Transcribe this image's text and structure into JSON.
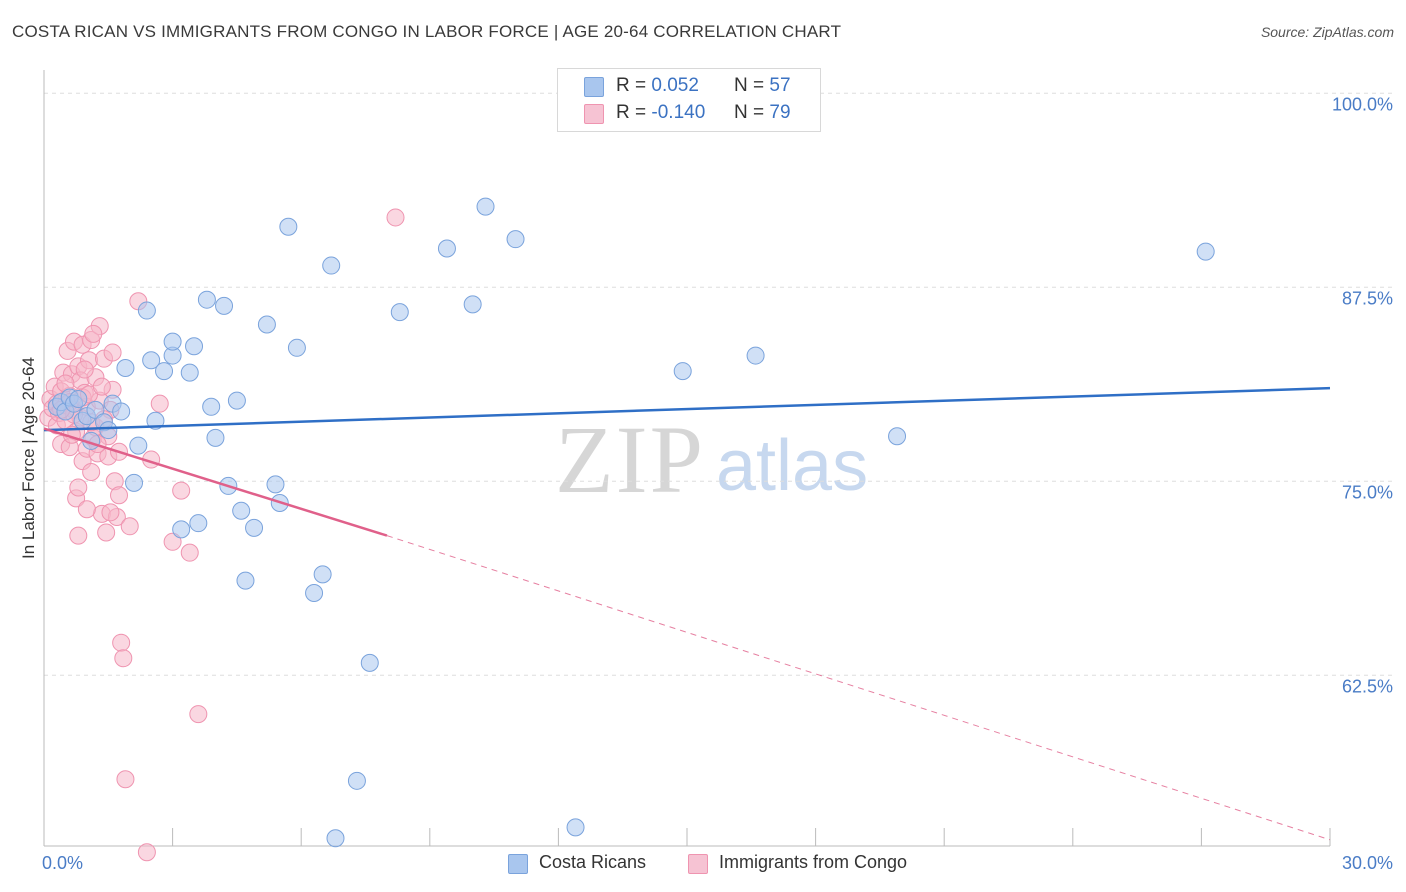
{
  "header": {
    "title": "COSTA RICAN VS IMMIGRANTS FROM CONGO IN LABOR FORCE | AGE 20-64 CORRELATION CHART",
    "source": "Source: ZipAtlas.com"
  },
  "watermark": {
    "zip": "ZIP",
    "atlas": "atlas"
  },
  "colors": {
    "blue_fill": "#a9c6ee",
    "blue_stroke": "#7aa3dc",
    "blue_line": "#2f6fc6",
    "pink_fill": "#f6b6c9",
    "pink_stroke": "#ef94b0",
    "pink_line": "#e0608a",
    "tick_text": "#4a7cc6",
    "grid": "#dddddd"
  },
  "legend": {
    "series": [
      {
        "r_label": "R =",
        "r_value": "0.052",
        "n_label": "N =",
        "n_value": "57"
      },
      {
        "r_label": "R =",
        "r_value": "-0.140",
        "n_label": "N =",
        "n_value": "79"
      }
    ]
  },
  "chart_data": {
    "type": "scatter",
    "title": "COSTA RICAN VS IMMIGRANTS FROM CONGO IN LABOR FORCE | AGE 20-64 CORRELATION CHART",
    "xlabel": "",
    "ylabel": "In Labor Force | Age 20-64",
    "xlim": [
      0,
      30
    ],
    "ylim": [
      51.5,
      101.5
    ],
    "x_tick_labels": [
      "0.0%",
      "30.0%"
    ],
    "y_ticks": [
      62.5,
      75.0,
      87.5,
      100.0
    ],
    "y_tick_labels": [
      "62.5%",
      "75.0%",
      "87.5%",
      "100.0%"
    ],
    "grid": "horizontal dashed",
    "series": [
      {
        "name": "Costa Ricans",
        "R": 0.052,
        "N": 57,
        "trend": {
          "x": [
            0,
            30
          ],
          "y": [
            78.3,
            81.0
          ],
          "style": "solid"
        },
        "points": [
          [
            0.3,
            79.8
          ],
          [
            0.4,
            80.1
          ],
          [
            0.5,
            79.5
          ],
          [
            0.6,
            80.4
          ],
          [
            0.7,
            80.0
          ],
          [
            0.8,
            80.3
          ],
          [
            0.9,
            78.9
          ],
          [
            1.0,
            79.2
          ],
          [
            1.1,
            77.6
          ],
          [
            1.2,
            79.6
          ],
          [
            1.4,
            78.8
          ],
          [
            1.5,
            78.3
          ],
          [
            1.6,
            80.0
          ],
          [
            1.8,
            79.5
          ],
          [
            1.9,
            82.3
          ],
          [
            2.1,
            74.9
          ],
          [
            2.2,
            77.3
          ],
          [
            2.4,
            86.0
          ],
          [
            2.5,
            82.8
          ],
          [
            2.6,
            78.9
          ],
          [
            2.8,
            82.1
          ],
          [
            3.0,
            83.1
          ],
          [
            3.0,
            84.0
          ],
          [
            3.2,
            71.9
          ],
          [
            3.4,
            82.0
          ],
          [
            3.5,
            83.7
          ],
          [
            3.6,
            72.3
          ],
          [
            3.8,
            86.7
          ],
          [
            3.9,
            79.8
          ],
          [
            4.0,
            77.8
          ],
          [
            4.2,
            86.3
          ],
          [
            4.3,
            74.7
          ],
          [
            4.5,
            80.2
          ],
          [
            4.6,
            73.1
          ],
          [
            4.7,
            68.6
          ],
          [
            4.9,
            72.0
          ],
          [
            5.2,
            85.1
          ],
          [
            5.4,
            74.8
          ],
          [
            5.5,
            73.6
          ],
          [
            5.7,
            91.4
          ],
          [
            5.9,
            83.6
          ],
          [
            6.3,
            67.8
          ],
          [
            6.5,
            69.0
          ],
          [
            6.7,
            88.9
          ],
          [
            6.8,
            52.0
          ],
          [
            7.3,
            55.7
          ],
          [
            7.6,
            63.3
          ],
          [
            8.3,
            85.9
          ],
          [
            9.4,
            90.0
          ],
          [
            10.0,
            86.4
          ],
          [
            10.3,
            92.7
          ],
          [
            11.0,
            90.6
          ],
          [
            12.4,
            52.7
          ],
          [
            14.9,
            82.1
          ],
          [
            16.6,
            83.1
          ],
          [
            19.9,
            77.9
          ],
          [
            27.1,
            89.8
          ]
        ]
      },
      {
        "name": "Immigrants from Congo",
        "R": -0.14,
        "N": 79,
        "trend": {
          "x": [
            0,
            8
          ],
          "y": [
            78.4,
            71.5
          ],
          "style": "solid",
          "extension": {
            "x": [
              8,
              30
            ],
            "y": [
              71.5,
              51.9
            ],
            "style": "dashed"
          }
        },
        "points": [
          [
            0.1,
            79.1
          ],
          [
            0.15,
            80.3
          ],
          [
            0.2,
            79.7
          ],
          [
            0.25,
            81.1
          ],
          [
            0.3,
            78.6
          ],
          [
            0.3,
            80.0
          ],
          [
            0.35,
            79.4
          ],
          [
            0.4,
            77.4
          ],
          [
            0.4,
            80.8
          ],
          [
            0.45,
            82.0
          ],
          [
            0.5,
            78.9
          ],
          [
            0.5,
            79.9
          ],
          [
            0.55,
            83.4
          ],
          [
            0.6,
            77.2
          ],
          [
            0.6,
            80.5
          ],
          [
            0.65,
            81.9
          ],
          [
            0.7,
            79.6
          ],
          [
            0.7,
            84.0
          ],
          [
            0.75,
            73.9
          ],
          [
            0.75,
            78.2
          ],
          [
            0.8,
            74.6
          ],
          [
            0.8,
            82.4
          ],
          [
            0.85,
            79.1
          ],
          [
            0.85,
            81.5
          ],
          [
            0.9,
            83.8
          ],
          [
            0.9,
            76.3
          ],
          [
            0.95,
            80.7
          ],
          [
            1.0,
            77.1
          ],
          [
            1.0,
            79.8
          ],
          [
            1.05,
            82.8
          ],
          [
            1.1,
            75.6
          ],
          [
            1.1,
            84.1
          ],
          [
            1.15,
            77.8
          ],
          [
            1.2,
            78.5
          ],
          [
            1.25,
            76.8
          ],
          [
            1.3,
            80.2
          ],
          [
            1.35,
            72.9
          ],
          [
            1.4,
            82.9
          ],
          [
            1.45,
            71.7
          ],
          [
            1.5,
            77.9
          ],
          [
            1.55,
            79.6
          ],
          [
            1.6,
            80.9
          ],
          [
            1.65,
            75.0
          ],
          [
            1.7,
            72.7
          ],
          [
            1.75,
            74.1
          ],
          [
            1.8,
            64.6
          ],
          [
            1.85,
            63.6
          ],
          [
            1.9,
            55.8
          ],
          [
            2.0,
            72.1
          ],
          [
            2.2,
            86.6
          ],
          [
            2.5,
            76.4
          ],
          [
            2.7,
            80.0
          ],
          [
            3.0,
            71.1
          ],
          [
            3.2,
            74.4
          ],
          [
            3.4,
            70.4
          ],
          [
            3.6,
            60.0
          ],
          [
            8.2,
            92.0
          ],
          [
            0.8,
            71.5
          ],
          [
            1.0,
            73.2
          ],
          [
            1.1,
            78.8
          ],
          [
            1.2,
            81.7
          ],
          [
            1.3,
            85.0
          ],
          [
            0.6,
            80.1
          ],
          [
            0.7,
            79.3
          ],
          [
            0.9,
            80.4
          ],
          [
            1.4,
            79.0
          ],
          [
            1.5,
            76.6
          ],
          [
            1.6,
            83.3
          ],
          [
            0.5,
            81.3
          ],
          [
            0.95,
            82.2
          ],
          [
            1.05,
            80.6
          ],
          [
            1.15,
            84.5
          ],
          [
            1.25,
            77.4
          ],
          [
            2.4,
            51.1
          ],
          [
            1.35,
            81.1
          ],
          [
            0.4,
            79.6
          ],
          [
            0.65,
            78.0
          ],
          [
            1.55,
            73.0
          ],
          [
            1.75,
            76.9
          ]
        ]
      }
    ]
  },
  "bottom_legend": {
    "items": [
      "Costa Ricans",
      "Immigrants from Congo"
    ]
  }
}
